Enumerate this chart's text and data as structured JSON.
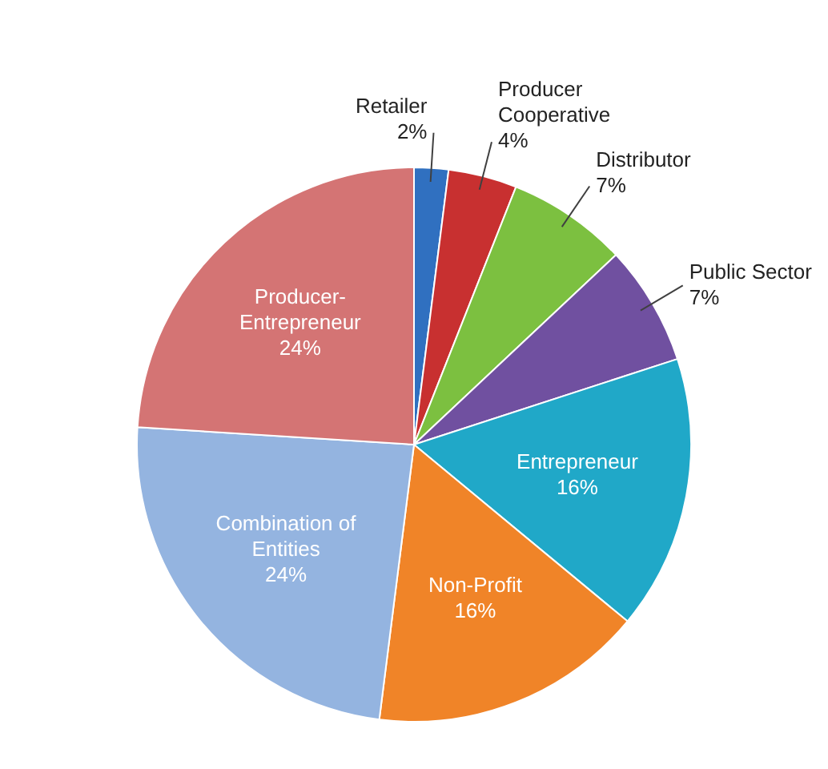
{
  "chart_data": {
    "type": "pie",
    "categories": [
      "Retailer",
      "Producer Cooperative",
      "Distributor",
      "Public Sector",
      "Entrepreneur",
      "Non-Profit",
      "Combination of Entities",
      "Producer-Entrepreneur"
    ],
    "values": [
      2,
      4,
      7,
      7,
      16,
      16,
      24,
      24
    ],
    "value_labels": [
      "2%",
      "4%",
      "7%",
      "7%",
      "16%",
      "16%",
      "24%",
      "24%"
    ],
    "colors": [
      "#3070c0",
      "#c83030",
      "#7cc040",
      "#7050a0",
      "#20a8c8",
      "#f08428",
      "#94b4e0",
      "#d47474"
    ],
    "legend": false
  }
}
